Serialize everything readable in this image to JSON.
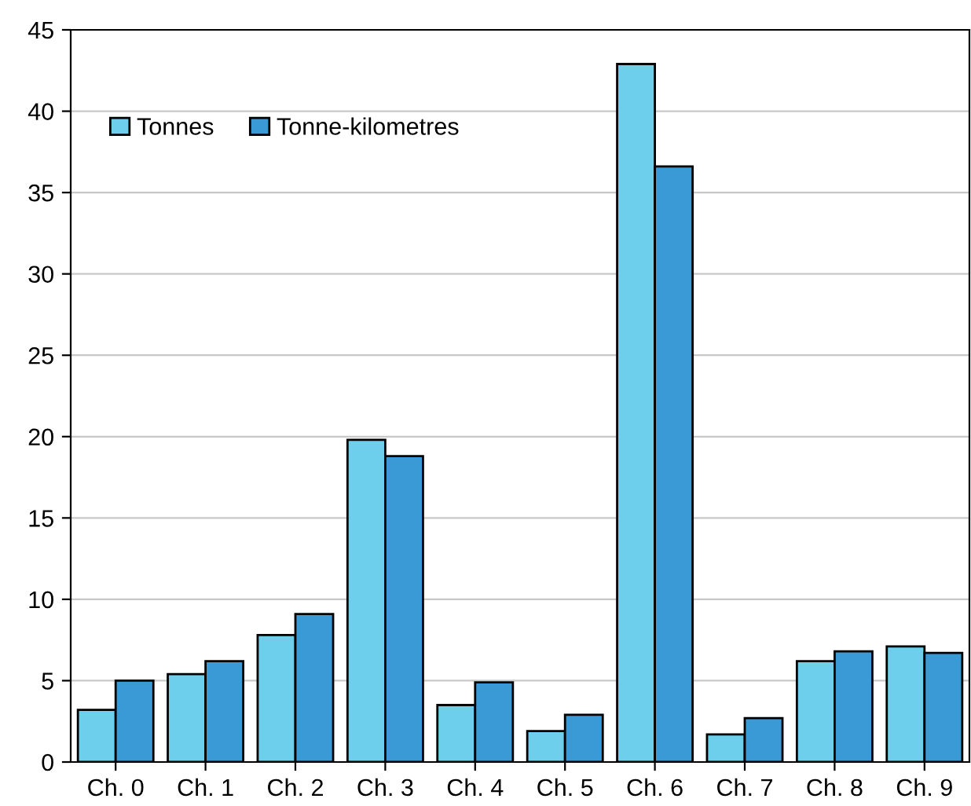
{
  "chart_data": {
    "type": "bar",
    "categories": [
      "Ch. 0",
      "Ch. 1",
      "Ch. 2",
      "Ch. 3",
      "Ch. 4",
      "Ch. 5",
      "Ch. 6",
      "Ch. 7",
      "Ch. 8",
      "Ch. 9"
    ],
    "series": [
      {
        "name": "Tonnes",
        "color": "#6dcfeb",
        "values": [
          3.2,
          5.4,
          7.8,
          19.8,
          3.5,
          1.9,
          42.9,
          1.7,
          6.2,
          7.1
        ]
      },
      {
        "name": "Tonne-kilometres",
        "color": "#3a9ad6",
        "values": [
          5.0,
          6.2,
          9.1,
          18.8,
          4.9,
          2.9,
          36.6,
          2.7,
          6.8,
          6.7
        ]
      }
    ],
    "ylim": [
      0,
      45
    ],
    "yticks": [
      0,
      5,
      10,
      15,
      20,
      25,
      30,
      35,
      40,
      45
    ],
    "grid": "y",
    "legend": "top left"
  }
}
